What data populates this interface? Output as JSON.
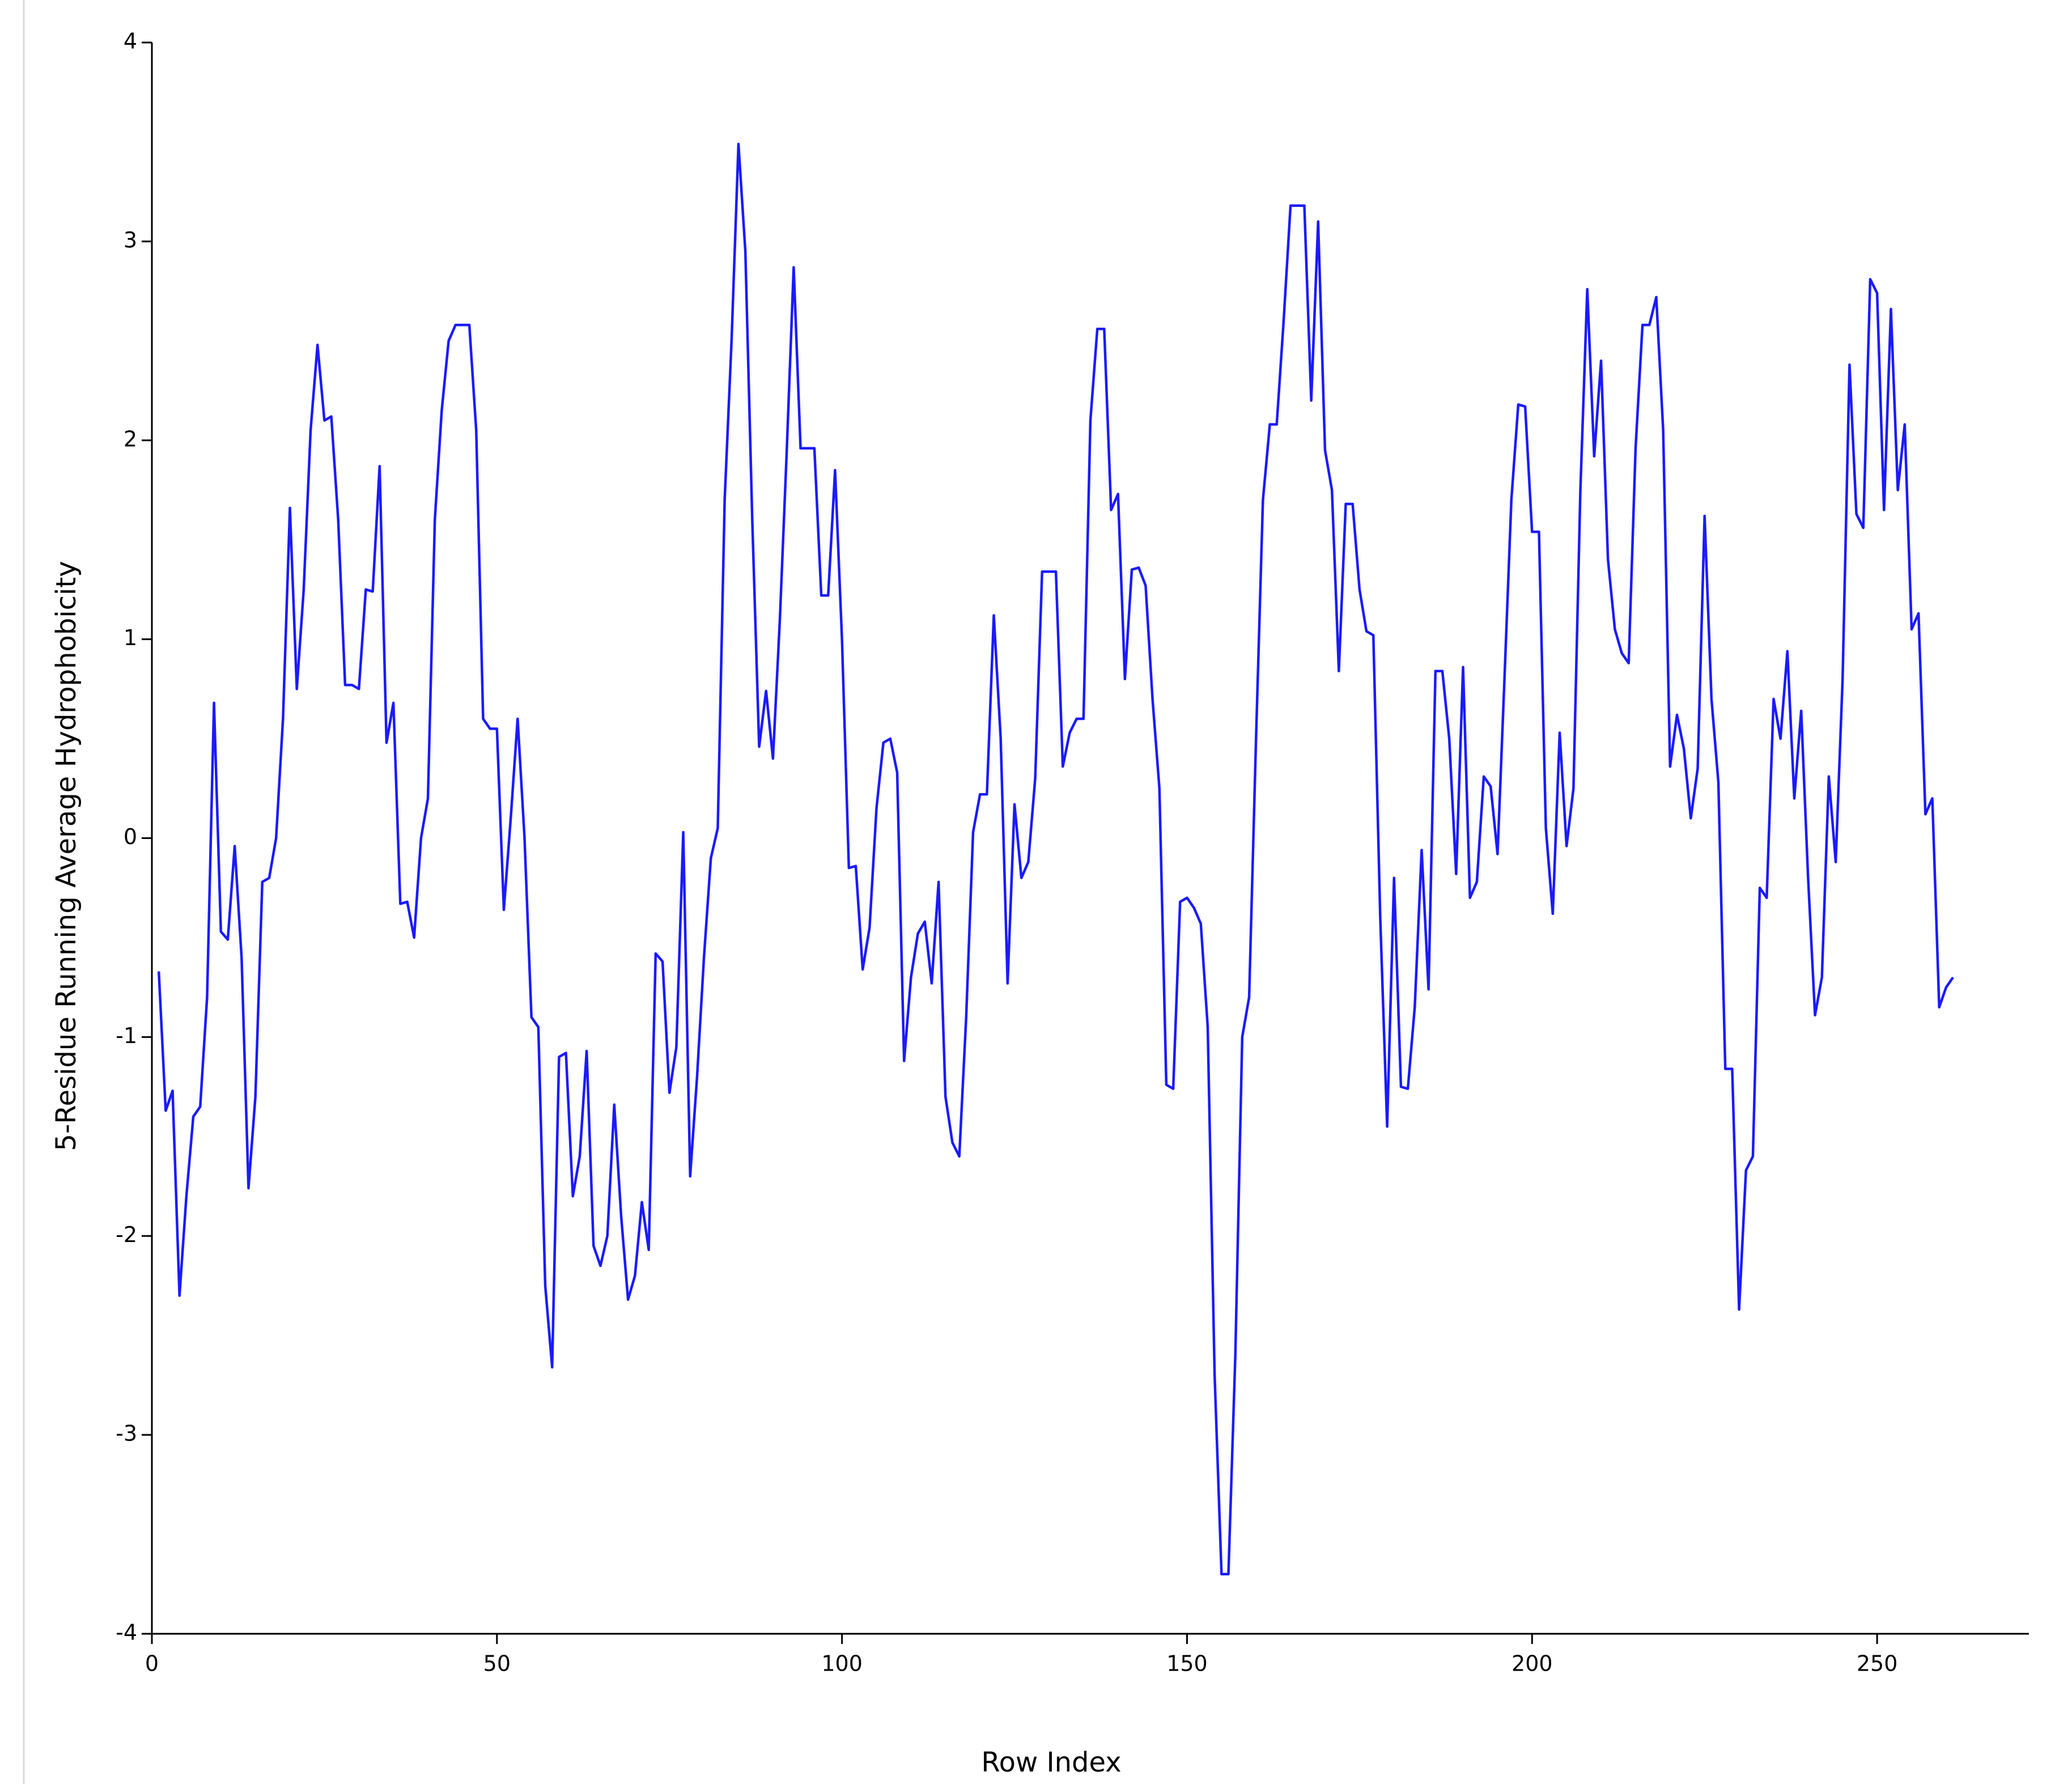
{
  "chart_data": {
    "type": "line",
    "xlabel": "Row Index",
    "ylabel": "5-Residue Running Average Hydrophobicity",
    "color": "#1a1aff",
    "xlim": [
      0,
      272
    ],
    "ylim": [
      -4,
      4
    ],
    "xticks": [
      0,
      50,
      100,
      150,
      200,
      250
    ],
    "yticks": [
      -4,
      -3,
      -2,
      -1,
      0,
      1,
      2,
      3,
      4
    ],
    "x": [
      1,
      2,
      3,
      4,
      5,
      6,
      7,
      8,
      9,
      10,
      11,
      12,
      13,
      14,
      15,
      16,
      17,
      18,
      19,
      20,
      21,
      22,
      23,
      24,
      25,
      26,
      27,
      28,
      29,
      30,
      31,
      32,
      33,
      34,
      35,
      36,
      37,
      38,
      39,
      40,
      41,
      42,
      43,
      44,
      45,
      46,
      47,
      48,
      49,
      50,
      51,
      52,
      53,
      54,
      55,
      56,
      57,
      58,
      59,
      60,
      61,
      62,
      63,
      64,
      65,
      66,
      67,
      68,
      69,
      70,
      71,
      72,
      73,
      74,
      75,
      76,
      77,
      78,
      79,
      80,
      81,
      82,
      83,
      84,
      85,
      86,
      87,
      88,
      89,
      90,
      91,
      92,
      93,
      94,
      95,
      96,
      97,
      98,
      99,
      100,
      101,
      102,
      103,
      104,
      105,
      106,
      107,
      108,
      109,
      110,
      111,
      112,
      113,
      114,
      115,
      116,
      117,
      118,
      119,
      120,
      121,
      122,
      123,
      124,
      125,
      126,
      127,
      128,
      129,
      130,
      131,
      132,
      133,
      134,
      135,
      136,
      137,
      138,
      139,
      140,
      141,
      142,
      143,
      144,
      145,
      146,
      147,
      148,
      149,
      150,
      151,
      152,
      153,
      154,
      155,
      156,
      157,
      158,
      159,
      160,
      161,
      162,
      163,
      164,
      165,
      166,
      167,
      168,
      169,
      170,
      171,
      172,
      173,
      174,
      175,
      176,
      177,
      178,
      179,
      180,
      181,
      182,
      183,
      184,
      185,
      186,
      187,
      188,
      189,
      190,
      191,
      192,
      193,
      194,
      195,
      196,
      197,
      198,
      199,
      200,
      201,
      202,
      203,
      204,
      205,
      206,
      207,
      208,
      209,
      210,
      211,
      212,
      213,
      214,
      215,
      216,
      217,
      218,
      219,
      220,
      221,
      222,
      223,
      224,
      225,
      226,
      227,
      228,
      229,
      230,
      231,
      232,
      233,
      234,
      235,
      236,
      237,
      238,
      239,
      240,
      241,
      242,
      243,
      244,
      245,
      246,
      247,
      248,
      249,
      250,
      251,
      252,
      253,
      254,
      255,
      256,
      257,
      258,
      259,
      260,
      261
    ],
    "values": [
      -0.67,
      -1.37,
      -1.27,
      -2.3,
      -1.8,
      -1.4,
      -1.35,
      -0.8,
      0.68,
      -0.47,
      -0.51,
      -0.04,
      -0.6,
      -1.76,
      -1.3,
      -0.22,
      -0.2,
      0.0,
      0.6,
      1.66,
      0.75,
      1.25,
      2.05,
      2.48,
      2.1,
      2.12,
      1.6,
      0.77,
      0.77,
      0.75,
      1.25,
      1.24,
      1.87,
      0.48,
      0.68,
      -0.33,
      -0.32,
      -0.5,
      0.0,
      0.2,
      1.6,
      2.15,
      2.5,
      2.58,
      2.58,
      2.58,
      2.05,
      0.6,
      0.55,
      0.55,
      -0.36,
      0.1,
      0.6,
      0.0,
      -0.9,
      -0.95,
      -2.25,
      -2.66,
      -1.1,
      -1.08,
      -1.8,
      -1.6,
      -1.07,
      -2.05,
      -2.15,
      -2.0,
      -1.34,
      -1.9,
      -2.32,
      -2.2,
      -1.83,
      -2.07,
      -0.58,
      -0.62,
      -1.28,
      -1.05,
      0.03,
      -1.7,
      -1.2,
      -0.6,
      -0.1,
      0.05,
      1.7,
      2.5,
      3.49,
      2.95,
      1.6,
      0.46,
      0.74,
      0.4,
      1.1,
      1.95,
      2.87,
      1.96,
      1.96,
      1.96,
      1.22,
      1.22,
      1.85,
      1.0,
      -0.15,
      -0.14,
      -0.66,
      -0.45,
      0.15,
      0.48,
      0.5,
      0.33,
      -1.12,
      -0.7,
      -0.48,
      -0.42,
      -0.73,
      -0.22,
      -1.3,
      -1.53,
      -1.6,
      -0.9,
      0.03,
      0.22,
      0.22,
      1.12,
      0.5,
      -0.73,
      0.17,
      -0.2,
      -0.12,
      0.3,
      1.34,
      1.34,
      1.34,
      0.36,
      0.53,
      0.6,
      0.6,
      2.1,
      2.56,
      2.56,
      1.65,
      1.73,
      0.8,
      1.35,
      1.36,
      1.27,
      0.7,
      0.25,
      -1.24,
      -1.26,
      -0.32,
      -0.3,
      -0.35,
      -0.43,
      -0.95,
      -2.7,
      -3.7,
      -3.7,
      -2.6,
      -1.0,
      -0.8,
      0.5,
      1.7,
      2.08,
      2.08,
      2.6,
      3.18,
      3.18,
      3.18,
      2.2,
      3.1,
      1.95,
      1.75,
      0.84,
      1.68,
      1.68,
      1.25,
      1.04,
      1.02,
      -0.4,
      -1.45,
      -0.2,
      -1.25,
      -1.26,
      -0.85,
      -0.06,
      -0.76,
      0.84,
      0.84,
      0.5,
      -0.18,
      0.86,
      -0.3,
      -0.22,
      0.31,
      0.26,
      -0.08,
      0.8,
      1.7,
      2.18,
      2.17,
      1.54,
      1.54,
      0.05,
      -0.38,
      0.53,
      -0.04,
      0.25,
      1.75,
      2.76,
      1.92,
      2.4,
      1.4,
      1.05,
      0.93,
      0.88,
      1.96,
      2.58,
      2.58,
      2.72,
      2.05,
      0.36,
      0.62,
      0.45,
      0.1,
      0.35,
      1.62,
      0.7,
      0.28,
      -1.16,
      -1.16,
      -2.37,
      -1.67,
      -1.6,
      -0.25,
      -0.3,
      0.7,
      0.5,
      0.94,
      0.2,
      0.64,
      -0.2,
      -0.89,
      -0.7,
      0.31,
      -0.12,
      0.8,
      2.38,
      1.63,
      1.56,
      2.81,
      2.74,
      1.65,
      2.66,
      1.75,
      2.08,
      1.05,
      1.13,
      0.12,
      0.2,
      -0.85,
      -0.75,
      -0.7
    ]
  }
}
